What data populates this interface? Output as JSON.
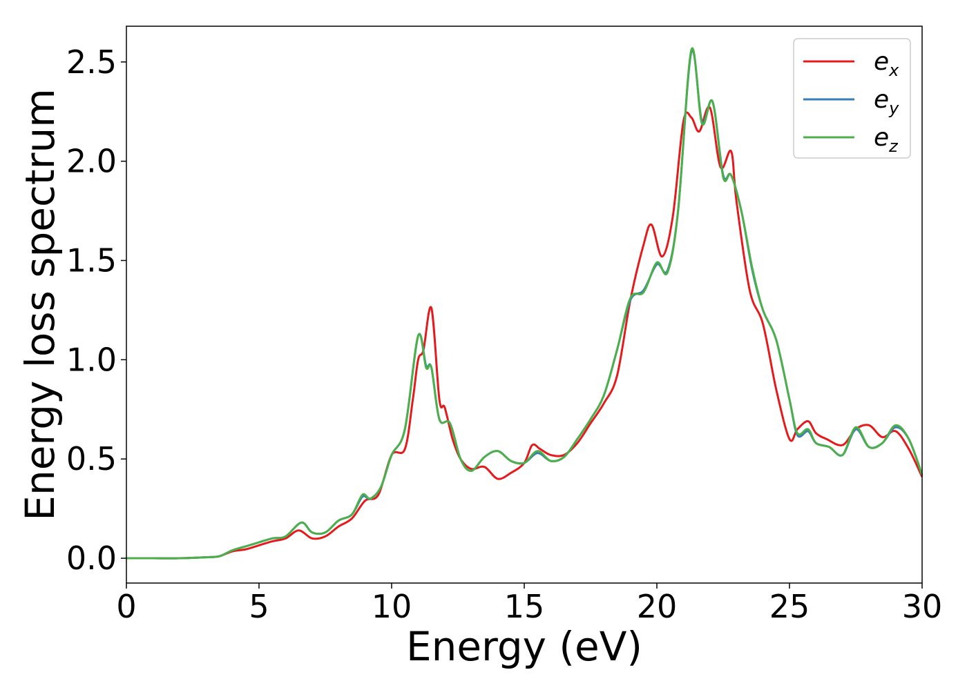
{
  "chart_data": {
    "type": "line",
    "xlabel": "Energy (eV)",
    "ylabel": "Energy loss spectrum",
    "xlim": [
      0,
      30
    ],
    "ylim": [
      -0.125,
      2.68
    ],
    "xticks": [
      0,
      5,
      10,
      15,
      20,
      25,
      30
    ],
    "xtick_labels": [
      "0",
      "5",
      "10",
      "15",
      "20",
      "25",
      "30"
    ],
    "yticks": [
      0.0,
      0.5,
      1.0,
      1.5,
      2.0,
      2.5
    ],
    "ytick_labels": [
      "0.0",
      "0.5",
      "1.0",
      "1.5",
      "2.0",
      "2.5"
    ],
    "grid": false,
    "legend_position": "top-right",
    "series": [
      {
        "name": "e",
        "subscript": "x",
        "color": "#e41a1c",
        "x": [
          0,
          1,
          2,
          3,
          3.5,
          4,
          4.5,
          5,
          5.5,
          6,
          6.5,
          7,
          7.5,
          8,
          8.5,
          9,
          9.5,
          10,
          10.5,
          10.8,
          11,
          11.2,
          11.5,
          11.8,
          12,
          12.3,
          12.6,
          13,
          13.5,
          14,
          14.5,
          15,
          15.3,
          15.6,
          16,
          16.5,
          17,
          17.5,
          18,
          18.5,
          19,
          19.5,
          19.8,
          20.2,
          20.6,
          21,
          21.3,
          21.6,
          22,
          22.4,
          22.8,
          23,
          23.5,
          24,
          24.5,
          25,
          25.3,
          25.7,
          26,
          26.4,
          27,
          27.5,
          28,
          28.5,
          29,
          29.5,
          30
        ],
        "y": [
          0,
          0,
          0,
          0.005,
          0.01,
          0.035,
          0.045,
          0.065,
          0.085,
          0.1,
          0.14,
          0.1,
          0.11,
          0.16,
          0.2,
          0.29,
          0.32,
          0.52,
          0.55,
          0.8,
          1.0,
          1.05,
          1.26,
          0.8,
          0.76,
          0.6,
          0.5,
          0.45,
          0.46,
          0.4,
          0.43,
          0.48,
          0.57,
          0.55,
          0.52,
          0.52,
          0.58,
          0.68,
          0.78,
          0.92,
          1.3,
          1.58,
          1.68,
          1.52,
          1.72,
          2.2,
          2.22,
          2.15,
          2.27,
          1.97,
          2.05,
          1.8,
          1.35,
          1.18,
          0.85,
          0.6,
          0.65,
          0.69,
          0.63,
          0.6,
          0.57,
          0.65,
          0.67,
          0.61,
          0.64,
          0.55,
          0.41
        ]
      },
      {
        "name": "e",
        "subscript": "y",
        "color": "#377eb8",
        "x": [
          0,
          1,
          2,
          3,
          3.5,
          4,
          4.5,
          5,
          5.5,
          6,
          6.6,
          7,
          7.5,
          8,
          8.5,
          8.9,
          9.2,
          9.6,
          10,
          10.5,
          11,
          11.3,
          11.5,
          11.8,
          12.2,
          12.6,
          13,
          13.5,
          14,
          14.5,
          15,
          15.5,
          16,
          16.5,
          17,
          17.5,
          18,
          18.5,
          19,
          19.5,
          20,
          20.4,
          20.8,
          21.3,
          21.7,
          22.1,
          22.5,
          22.8,
          23.2,
          23.6,
          24,
          24.5,
          25,
          25.3,
          25.7,
          26,
          26.5,
          27,
          27.5,
          28,
          28.5,
          29,
          29.5,
          30
        ],
        "y": [
          0,
          0,
          0,
          0.005,
          0.01,
          0.04,
          0.06,
          0.08,
          0.1,
          0.11,
          0.18,
          0.13,
          0.13,
          0.19,
          0.22,
          0.31,
          0.3,
          0.36,
          0.52,
          0.65,
          1.12,
          0.97,
          0.96,
          0.7,
          0.68,
          0.5,
          0.44,
          0.51,
          0.54,
          0.49,
          0.48,
          0.53,
          0.49,
          0.51,
          0.6,
          0.7,
          0.82,
          1.05,
          1.3,
          1.35,
          1.48,
          1.45,
          1.75,
          2.55,
          2.2,
          2.3,
          1.93,
          1.93,
          1.74,
          1.45,
          1.25,
          1.1,
          0.8,
          0.62,
          0.64,
          0.58,
          0.56,
          0.52,
          0.65,
          0.56,
          0.58,
          0.66,
          0.6,
          0.42
        ]
      },
      {
        "name": "e",
        "subscript": "z",
        "color": "#4daf4a",
        "x": [
          0,
          1,
          2,
          3,
          3.5,
          4,
          4.5,
          5,
          5.5,
          6,
          6.6,
          7,
          7.5,
          8,
          8.5,
          8.9,
          9.2,
          9.6,
          10,
          10.5,
          11,
          11.3,
          11.5,
          11.8,
          12.2,
          12.6,
          13,
          13.5,
          14,
          14.5,
          15,
          15.5,
          16,
          16.5,
          17,
          17.5,
          18,
          18.5,
          19,
          19.5,
          20,
          20.4,
          20.8,
          21.3,
          21.7,
          22.1,
          22.5,
          22.8,
          23.2,
          23.6,
          24,
          24.5,
          25,
          25.3,
          25.7,
          26,
          26.5,
          27,
          27.5,
          28,
          28.5,
          29,
          29.5,
          30
        ],
        "y": [
          0,
          0,
          0,
          0.005,
          0.01,
          0.04,
          0.06,
          0.08,
          0.1,
          0.11,
          0.18,
          0.13,
          0.13,
          0.19,
          0.22,
          0.32,
          0.3,
          0.36,
          0.52,
          0.65,
          1.12,
          0.96,
          0.96,
          0.7,
          0.68,
          0.5,
          0.44,
          0.51,
          0.54,
          0.49,
          0.48,
          0.54,
          0.49,
          0.51,
          0.6,
          0.7,
          0.82,
          1.05,
          1.31,
          1.34,
          1.49,
          1.44,
          1.75,
          2.56,
          2.19,
          2.3,
          1.92,
          1.93,
          1.74,
          1.46,
          1.25,
          1.1,
          0.8,
          0.63,
          0.65,
          0.58,
          0.56,
          0.52,
          0.66,
          0.56,
          0.58,
          0.67,
          0.6,
          0.42
        ]
      }
    ]
  }
}
